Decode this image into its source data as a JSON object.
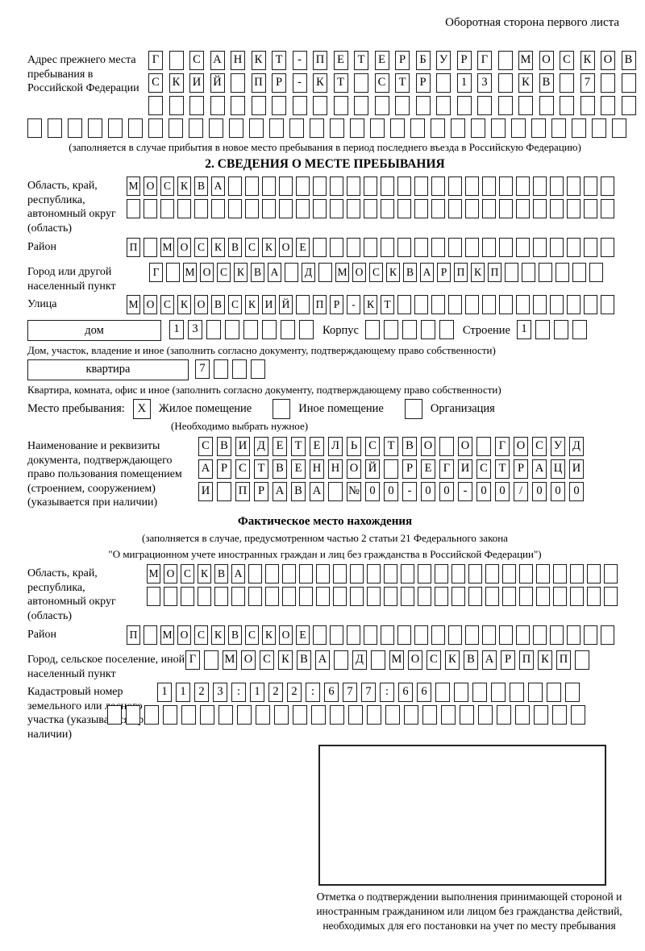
{
  "header": {
    "note": "Оборотная сторона первого листа"
  },
  "prev_address": {
    "label": "Адрес прежнего места пребывания в Российской Федерации",
    "rows": [
      {
        "chars": [
          "Г",
          "",
          "С",
          "А",
          "Н",
          "К",
          "Т",
          "-",
          "П",
          "Е",
          "Т",
          "Е",
          "Р",
          "Б",
          "У",
          "Р",
          "Г",
          "",
          "М",
          "О",
          "С",
          "К",
          "О",
          "В"
        ],
        "total": 24
      },
      {
        "chars": [
          "С",
          "К",
          "И",
          "Й",
          "",
          "П",
          "Р",
          "-",
          "К",
          "Т",
          "",
          "С",
          "Т",
          "Р",
          "",
          "1",
          "3",
          "",
          "К",
          "В",
          "",
          "7"
        ],
        "total": 24
      },
      {
        "chars": [],
        "total": 24
      },
      {
        "chars": [],
        "total": 30
      }
    ],
    "note": "(заполняется в случае прибытия в новое место пребывания в период последнего въезда в Российскую Федерацию)"
  },
  "section2": {
    "title": "2. СВЕДЕНИЯ О МЕСТЕ ПРЕБЫВАНИЯ",
    "region": {
      "label": "Область, край, республика, автономный округ (область)",
      "rows": [
        {
          "chars": [
            "М",
            "О",
            "С",
            "К",
            "В",
            "А"
          ],
          "total": 29
        },
        {
          "chars": [],
          "total": 29
        }
      ]
    },
    "district": {
      "label": "Район",
      "cells": {
        "chars": [
          "П",
          "",
          "М",
          "О",
          "С",
          "К",
          "В",
          "С",
          "К",
          "О",
          "Е"
        ],
        "total": 29
      }
    },
    "city": {
      "label": "Город или другой населенный пункт",
      "cells": {
        "chars": [
          "Г",
          "",
          "М",
          "О",
          "С",
          "К",
          "В",
          "А",
          "",
          "Д",
          "",
          "М",
          "О",
          "С",
          "К",
          "В",
          "А",
          "Р",
          "П",
          "К",
          "П"
        ],
        "total": 27
      }
    },
    "street": {
      "label": "Улица",
      "cells": {
        "chars": [
          "М",
          "О",
          "С",
          "К",
          "О",
          "В",
          "С",
          "К",
          "И",
          "Й",
          "",
          "П",
          "Р",
          "-",
          "К",
          "Т"
        ],
        "total": 29
      }
    },
    "house_row": {
      "box_label": "дом",
      "house_cells": {
        "chars": [
          "1",
          "3"
        ],
        "total": 8
      },
      "korpus_label": "Корпус",
      "korpus_cells": {
        "chars": [],
        "total": 5
      },
      "stroenie_label": "Строение",
      "stroenie_cells": {
        "chars": [
          "1"
        ],
        "total": 4
      }
    },
    "house_note": "Дом, участок, владение и иное (заполнить согласно документу, подтверждающему право собственности)",
    "apartment_row": {
      "box_label": "квартира",
      "cells": {
        "chars": [
          "7"
        ],
        "total": 4
      }
    },
    "apartment_note": "Квартира, комната, офис и иное (заполнить согласно документу, подтверждающему право собственности)",
    "stay_type": {
      "label": "Место пребывания:",
      "options": [
        {
          "label": "Жилое помещение",
          "mark": "X"
        },
        {
          "label": "Иное помещение",
          "mark": ""
        },
        {
          "label": "Организация",
          "mark": ""
        }
      ],
      "note": "(Необходимо выбрать нужное)"
    },
    "document": {
      "label": "Наименование и реквизиты документа, подтверждающего право пользования помещением (строением, сооружением) (указывается при наличии)",
      "rows": [
        {
          "chars": [
            "С",
            "В",
            "И",
            "Д",
            "Е",
            "Т",
            "Е",
            "Л",
            "Ь",
            "С",
            "Т",
            "В",
            "О",
            "",
            "О",
            "",
            "Г",
            "О",
            "С",
            "У",
            "Д"
          ],
          "total": 21
        },
        {
          "chars": [
            "А",
            "Р",
            "С",
            "Т",
            "В",
            "Е",
            "Н",
            "Н",
            "О",
            "Й",
            "",
            "Р",
            "Е",
            "Г",
            "И",
            "С",
            "Т",
            "Р",
            "А",
            "Ц",
            "И"
          ],
          "total": 21
        },
        {
          "chars": [
            "И",
            "",
            "П",
            "Р",
            "А",
            "В",
            "А",
            "",
            "№",
            "0",
            "0",
            "-",
            "0",
            "0",
            "-",
            "0",
            "0",
            "/",
            "0",
            "0",
            "0"
          ],
          "total": 21
        }
      ]
    }
  },
  "actual_location": {
    "title": "Фактическое место нахождения",
    "note_line1": "(заполняется в случае, предусмотренном частью 2 статьи 21 Федерального закона",
    "note_line2": "\"О миграционном учете иностранных граждан и лиц без гражданства в Российской Федерации\")",
    "region": {
      "label": "Область, край, республика, автономный округ (область)",
      "rows": [
        {
          "chars": [
            "М",
            "О",
            "С",
            "К",
            "В",
            "А"
          ],
          "total": 28
        },
        {
          "chars": [],
          "total": 28
        }
      ]
    },
    "district": {
      "label": "Район",
      "cells": {
        "chars": [
          "П",
          "",
          "М",
          "О",
          "С",
          "К",
          "В",
          "С",
          "К",
          "О",
          "Е"
        ],
        "total": 29
      }
    },
    "city": {
      "label": "Город, сельское поселение, иной населенный пункт",
      "cells": {
        "chars": [
          "Г",
          "",
          "М",
          "О",
          "С",
          "К",
          "В",
          "А",
          "",
          "Д",
          "",
          "М",
          "О",
          "С",
          "К",
          "В",
          "А",
          "Р",
          "П",
          "К",
          "П"
        ],
        "total": 22
      }
    },
    "cadastral": {
      "label": "Кадастровый номер земельного или лесного участка (указывается при наличии)",
      "rows": [
        {
          "chars": [
            "1",
            "1",
            "2",
            "3",
            ":",
            "1",
            "2",
            "2",
            ":",
            "6",
            "7",
            "7",
            ":",
            "6",
            "6"
          ],
          "total": 23
        },
        {
          "chars": [],
          "total": 26
        }
      ]
    },
    "stamp_caption": "Отметка о подтверждении выполнения принимающей стороной и иностранным гражданином или лицом без гражданства действий, необходимых для его постановки на учет по месту пребывания"
  }
}
